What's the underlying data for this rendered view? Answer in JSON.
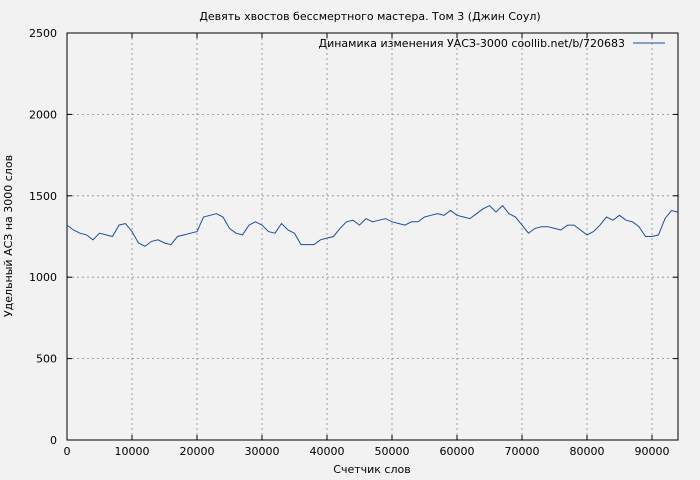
{
  "chart_data": {
    "type": "line",
    "title": "Девять хвостов бессмертного мастера. Том 3 (Джин Соул)",
    "xlabel": "Счетчик слов",
    "ylabel": "Удельный АСЗ на 3000 слов",
    "xlim": [
      0,
      94000
    ],
    "ylim": [
      0,
      2500
    ],
    "xticks": [
      0,
      10000,
      20000,
      30000,
      40000,
      50000,
      60000,
      70000,
      80000,
      90000
    ],
    "yticks": [
      0,
      500,
      1000,
      1500,
      2000,
      2500
    ],
    "grid": true,
    "legend_position": "top-right",
    "line_color": "#1f4e9c",
    "series": [
      {
        "name": "Динамика изменения УАСЗ-3000 coollib.net/b/720683",
        "x": [
          0,
          1000,
          2000,
          3000,
          4000,
          5000,
          6000,
          7000,
          8000,
          9000,
          10000,
          11000,
          12000,
          13000,
          14000,
          15000,
          16000,
          17000,
          18000,
          19000,
          20000,
          21000,
          22000,
          23000,
          24000,
          25000,
          26000,
          27000,
          28000,
          29000,
          30000,
          31000,
          32000,
          33000,
          34000,
          35000,
          36000,
          37000,
          38000,
          39000,
          40000,
          41000,
          42000,
          43000,
          44000,
          45000,
          46000,
          47000,
          48000,
          49000,
          50000,
          51000,
          52000,
          53000,
          54000,
          55000,
          56000,
          57000,
          58000,
          59000,
          60000,
          61000,
          62000,
          63000,
          64000,
          65000,
          66000,
          67000,
          68000,
          69000,
          70000,
          71000,
          72000,
          73000,
          74000,
          75000,
          76000,
          77000,
          78000,
          79000,
          80000,
          81000,
          82000,
          83000,
          84000,
          85000,
          86000,
          87000,
          88000,
          89000,
          90000,
          91000,
          92000,
          93000,
          94000
        ],
        "y": [
          1320,
          1290,
          1270,
          1260,
          1230,
          1270,
          1260,
          1250,
          1320,
          1330,
          1280,
          1210,
          1190,
          1220,
          1230,
          1210,
          1200,
          1250,
          1260,
          1270,
          1280,
          1370,
          1380,
          1390,
          1370,
          1300,
          1270,
          1260,
          1320,
          1340,
          1320,
          1280,
          1270,
          1330,
          1290,
          1270,
          1200,
          1200,
          1200,
          1230,
          1240,
          1250,
          1300,
          1340,
          1350,
          1320,
          1360,
          1340,
          1350,
          1360,
          1340,
          1330,
          1320,
          1340,
          1340,
          1370,
          1380,
          1390,
          1380,
          1410,
          1380,
          1370,
          1360,
          1390,
          1420,
          1440,
          1400,
          1440,
          1390,
          1370,
          1320,
          1270,
          1300,
          1310,
          1310,
          1300,
          1290,
          1320,
          1320,
          1290,
          1260,
          1280,
          1320,
          1370,
          1350,
          1380,
          1350,
          1340,
          1310,
          1250,
          1250,
          1260,
          1360,
          1410,
          1400
        ]
      }
    ]
  }
}
